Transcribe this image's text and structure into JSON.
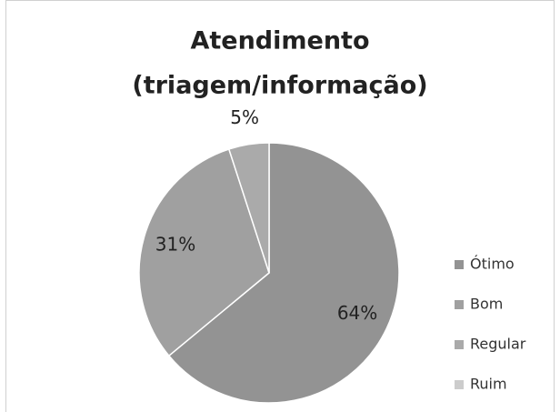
{
  "chart_data": {
    "type": "pie",
    "title": [
      "Atendimento",
      "(triagem/informação)"
    ],
    "categories": [
      "Ótimo",
      "Bom",
      "Regular",
      "Ruim"
    ],
    "values": [
      64,
      31,
      5,
      0
    ],
    "value_labels": [
      "64%",
      "31%",
      "5%",
      null
    ],
    "colors": [
      "#939393",
      "#a0a0a0",
      "#aaaaaa",
      "#cccccc"
    ],
    "legend": "right"
  }
}
